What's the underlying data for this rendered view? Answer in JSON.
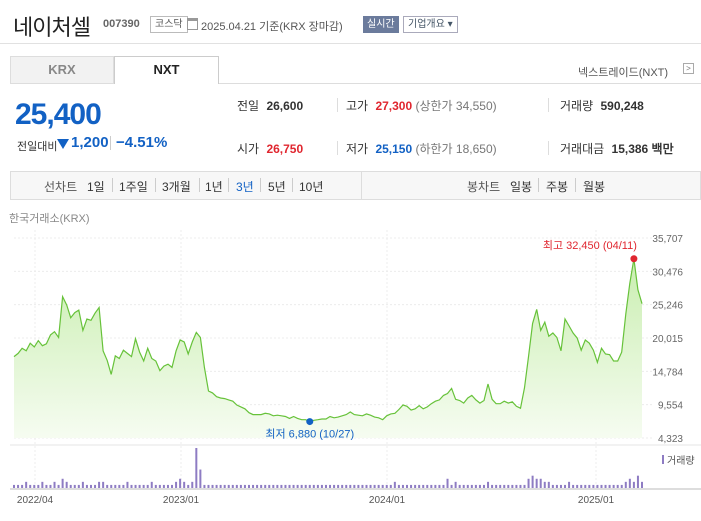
{
  "header": {
    "name": "네이처셀",
    "code": "007390",
    "market_badge": "코스닥",
    "date_text": "2025.04.21 기준(KRX 장마감)",
    "live_badge": "실시간",
    "overview_button": "기업개요 ▾"
  },
  "tabs": [
    {
      "label": "KRX",
      "selected": false
    },
    {
      "label": "NXT",
      "selected": true
    }
  ],
  "nxt_link": "넥스트레이드(NXT)",
  "price": {
    "current": "25,400",
    "change_label": "전일대비",
    "change": "1,200",
    "change_pct": "−4.51%",
    "direction": "down"
  },
  "stats": {
    "prev_close_label": "전일",
    "prev_close": "26,600",
    "high_label": "고가",
    "high": "27,300",
    "upper_limit": "(상한가 34,550)",
    "volume_label": "거래량",
    "volume": "590,248",
    "open_label": "시가",
    "open": "26,750",
    "low_label": "저가",
    "low": "25,150",
    "lower_limit": "(하한가 18,650)",
    "amount_label": "거래대금",
    "amount": "15,386 백만"
  },
  "periods": {
    "line_label": "선차트",
    "line_items": [
      "1일",
      "1주일",
      "3개월",
      "1년",
      "3년",
      "5년",
      "10년"
    ],
    "selected": "3년",
    "candle_label": "봉차트",
    "candle_items": [
      "일봉",
      "주봉",
      "월봉"
    ]
  },
  "source_label": "한국거래소(KRX)",
  "colors": {
    "up": "#e0262f",
    "down": "#1261c4",
    "line": "#67c23a",
    "fill_top": "#c9eeb0",
    "volume": "#8e7cc3"
  },
  "chart_data": {
    "type": "area",
    "x_ticks": [
      "2022/04",
      "2023/01",
      "2024/01",
      "2025/01"
    ],
    "y_ticks": [
      "35,707",
      "30,476",
      "25,246",
      "20,015",
      "14,784",
      "9,554",
      "4,323"
    ],
    "ylim": [
      4323,
      35707
    ],
    "volume_label": "거래량",
    "high_annotation": "최고 32,450 (04/11)",
    "low_annotation": "최저 6,880 (10/27)",
    "series": [
      {
        "values": [
          17100,
          17600,
          18400,
          18000,
          19200,
          18600,
          19600,
          18800,
          19100,
          20500,
          21000,
          20100,
          26500,
          25200,
          23200,
          24000,
          24400,
          21200,
          23000,
          22800,
          23900,
          24800,
          18000,
          16500,
          14300,
          17200,
          16800,
          18100,
          17600,
          17100,
          19900,
          17800,
          16400,
          18400,
          16800,
          16400,
          14900,
          15600,
          15900,
          15400,
          18000,
          19700,
          19400,
          17500,
          19400,
          20900,
          20100,
          15400,
          11700,
          11400,
          10800,
          10600,
          10500,
          10300,
          10100,
          9500,
          9200,
          8900,
          8300,
          8000,
          8000,
          8000,
          8200,
          8100,
          7800,
          7900,
          7800,
          7700,
          7400,
          7700,
          7400,
          7200,
          7200,
          6900,
          7100,
          7200,
          7300,
          7300,
          7700,
          7500,
          7600,
          7800,
          8000,
          8400,
          8000,
          7900,
          7800,
          8100,
          7900,
          7600,
          7500,
          7200,
          7800,
          8100,
          8200,
          8800,
          9500,
          9300,
          8700,
          8900,
          9400,
          8900,
          9200,
          9700,
          10100,
          10300,
          11000,
          11300,
          12100,
          10400,
          10200,
          9800,
          10600,
          11000,
          10300,
          9800,
          10200,
          12800,
          10400,
          9700,
          9700,
          10100,
          9800,
          10000,
          9300,
          9000,
          12200,
          17200,
          22300,
          24500,
          21200,
          22500,
          20300,
          20800,
          20100,
          18000,
          23000,
          21900,
          20800,
          20000,
          18100,
          19700,
          19200,
          18100,
          16200,
          18400,
          17500,
          17400,
          16400,
          16400,
          17800,
          23800,
          28600,
          32450,
          27600,
          25400
        ]
      }
    ],
    "volume": [
      1,
      1,
      1,
      2,
      1,
      1,
      1,
      2,
      1,
      1,
      2,
      1,
      3,
      2,
      1,
      1,
      1,
      2,
      1,
      1,
      1,
      2,
      2,
      1,
      1,
      1,
      1,
      1,
      2,
      1,
      1,
      1,
      1,
      1,
      2,
      1,
      1,
      1,
      1,
      1,
      2,
      3,
      2,
      1,
      2,
      13,
      6,
      1,
      1,
      1,
      1,
      1,
      1,
      1,
      1,
      1,
      1,
      1,
      1,
      1,
      1,
      1,
      1,
      1,
      1,
      1,
      1,
      1,
      1,
      1,
      1,
      1,
      1,
      1,
      1,
      1,
      1,
      1,
      1,
      1,
      1,
      1,
      1,
      1,
      1,
      1,
      1,
      1,
      1,
      1,
      1,
      1,
      1,
      1,
      2,
      1,
      1,
      1,
      1,
      1,
      1,
      1,
      1,
      1,
      1,
      1,
      1,
      3,
      1,
      2,
      1,
      1,
      1,
      1,
      1,
      1,
      1,
      2,
      1,
      1,
      1,
      1,
      1,
      1,
      1,
      1,
      1,
      3,
      4,
      3,
      3,
      2,
      2,
      1,
      1,
      1,
      1,
      2,
      1,
      1,
      1,
      1,
      1,
      1,
      1,
      1,
      1,
      1,
      1,
      1,
      1,
      2,
      3,
      2,
      4,
      2
    ]
  }
}
